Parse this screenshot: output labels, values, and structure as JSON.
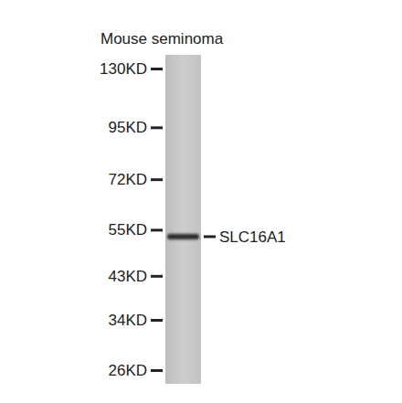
{
  "chart_data": {
    "type": "blot",
    "title": "Mouse seminoma",
    "log": "y",
    "ylim": [
      26,
      130
    ],
    "yticks": [
      {
        "value": 130,
        "label": "130KD"
      },
      {
        "value": 95,
        "label": "95KD"
      },
      {
        "value": 72,
        "label": "72KD"
      },
      {
        "value": 55,
        "label": "55KD"
      },
      {
        "value": 43,
        "label": "43KD"
      },
      {
        "value": 34,
        "label": "34KD"
      },
      {
        "value": 26,
        "label": "26KD"
      }
    ],
    "categories": [
      "SLC16A1"
    ],
    "values": [
      53
    ]
  }
}
